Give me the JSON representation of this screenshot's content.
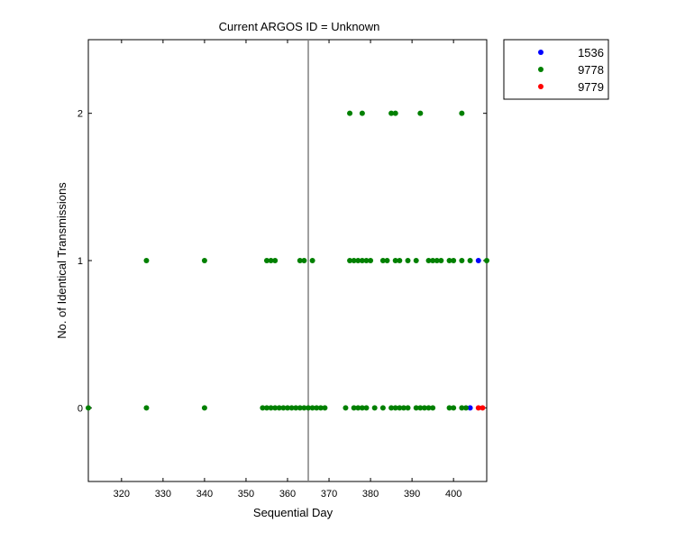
{
  "chart_data": {
    "type": "scatter",
    "title": "Current ARGOS ID = Unknown",
    "xlabel": "Sequential Day",
    "ylabel": "No. of Identical Transmissions",
    "xlim": [
      312,
      408
    ],
    "ylim": [
      -0.5,
      2.5
    ],
    "xticks": [
      320,
      330,
      340,
      350,
      360,
      370,
      380,
      390,
      400
    ],
    "yticks": [
      0,
      1,
      2
    ],
    "vline_x": 365,
    "vline_color": "#808080",
    "grid": false,
    "legend_position": "outside-top-right",
    "series": [
      {
        "name": "1536",
        "color": "#0000ff",
        "points": [
          [
            406,
            1
          ],
          [
            404,
            0
          ]
        ]
      },
      {
        "name": "9778",
        "color": "#008000",
        "points": [
          [
            312,
            0
          ],
          [
            326,
            0
          ],
          [
            340,
            0
          ],
          [
            354,
            0
          ],
          [
            355,
            0
          ],
          [
            356,
            0
          ],
          [
            357,
            0
          ],
          [
            358,
            0
          ],
          [
            359,
            0
          ],
          [
            360,
            0
          ],
          [
            361,
            0
          ],
          [
            362,
            0
          ],
          [
            363,
            0
          ],
          [
            364,
            0
          ],
          [
            365,
            0
          ],
          [
            366,
            0
          ],
          [
            367,
            0
          ],
          [
            368,
            0
          ],
          [
            369,
            0
          ],
          [
            374,
            0
          ],
          [
            376,
            0
          ],
          [
            377,
            0
          ],
          [
            378,
            0
          ],
          [
            379,
            0
          ],
          [
            381,
            0
          ],
          [
            383,
            0
          ],
          [
            385,
            0
          ],
          [
            386,
            0
          ],
          [
            387,
            0
          ],
          [
            388,
            0
          ],
          [
            389,
            0
          ],
          [
            391,
            0
          ],
          [
            392,
            0
          ],
          [
            393,
            0
          ],
          [
            394,
            0
          ],
          [
            395,
            0
          ],
          [
            399,
            0
          ],
          [
            400,
            0
          ],
          [
            402,
            0
          ],
          [
            403,
            0
          ],
          [
            326,
            1
          ],
          [
            340,
            1
          ],
          [
            355,
            1
          ],
          [
            356,
            1
          ],
          [
            357,
            1
          ],
          [
            363,
            1
          ],
          [
            364,
            1
          ],
          [
            366,
            1
          ],
          [
            375,
            1
          ],
          [
            376,
            1
          ],
          [
            377,
            1
          ],
          [
            378,
            1
          ],
          [
            379,
            1
          ],
          [
            380,
            1
          ],
          [
            383,
            1
          ],
          [
            384,
            1
          ],
          [
            386,
            1
          ],
          [
            387,
            1
          ],
          [
            389,
            1
          ],
          [
            391,
            1
          ],
          [
            394,
            1
          ],
          [
            395,
            1
          ],
          [
            396,
            1
          ],
          [
            397,
            1
          ],
          [
            399,
            1
          ],
          [
            400,
            1
          ],
          [
            402,
            1
          ],
          [
            404,
            1
          ],
          [
            408,
            1
          ],
          [
            375,
            2
          ],
          [
            378,
            2
          ],
          [
            385,
            2
          ],
          [
            386,
            2
          ],
          [
            392,
            2
          ],
          [
            402,
            2
          ]
        ]
      },
      {
        "name": "9779",
        "color": "#ff0000",
        "points": [
          [
            406,
            0
          ],
          [
            407,
            0
          ]
        ]
      }
    ]
  }
}
